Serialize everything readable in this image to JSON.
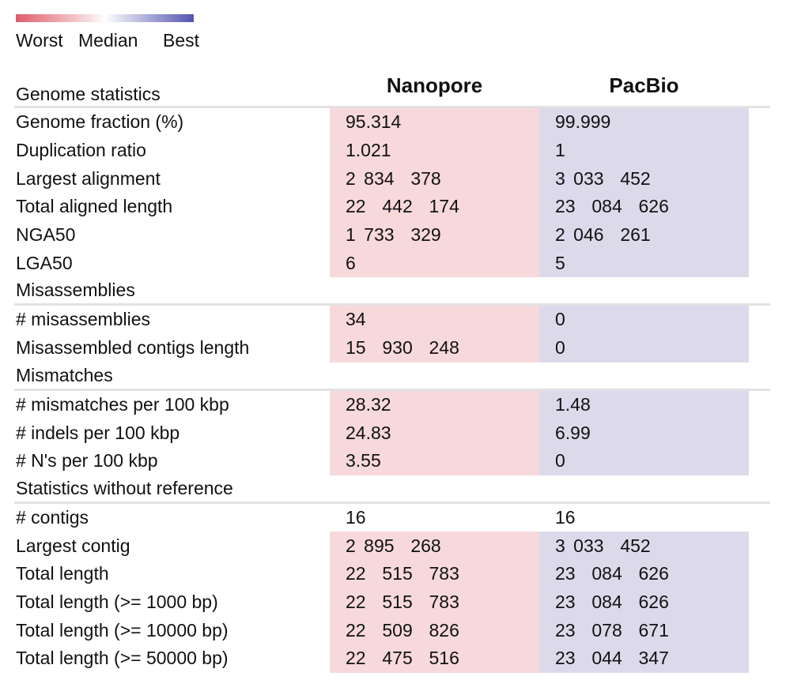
{
  "legend": {
    "worst": "Worst",
    "median": "Median",
    "best": "Best",
    "colors": {
      "worst": "#e05c6a",
      "median": "#ffffff",
      "best": "#5454b0"
    }
  },
  "columns": [
    "Nanopore",
    "PacBio"
  ],
  "colors": {
    "worst_cell": "#f7d9dc",
    "best_cell": "#dcdaea",
    "divider": "#e2e2e2"
  },
  "sections": [
    {
      "title": "Genome statistics",
      "rows": [
        {
          "label": "Genome fraction (%)",
          "values": [
            "95.314",
            "99.999"
          ],
          "heat": [
            "worst",
            "best"
          ]
        },
        {
          "label": "Duplication ratio",
          "values": [
            "1.021",
            "1"
          ],
          "heat": [
            "worst",
            "best"
          ]
        },
        {
          "label": "Largest alignment",
          "values": [
            "2 834  378",
            "3 033  452"
          ],
          "heat": [
            "worst",
            "best"
          ]
        },
        {
          "label": "Total aligned length",
          "values": [
            "22  442  174",
            "23  084  626"
          ],
          "heat": [
            "worst",
            "best"
          ]
        },
        {
          "label": "NGA50",
          "values": [
            "1 733  329",
            "2 046  261"
          ],
          "heat": [
            "worst",
            "best"
          ]
        },
        {
          "label": "LGA50",
          "values": [
            "6",
            "5"
          ],
          "heat": [
            "worst",
            "best"
          ]
        }
      ]
    },
    {
      "title": "Misassemblies",
      "rows": [
        {
          "label": "# misassemblies",
          "values": [
            "34",
            "0"
          ],
          "heat": [
            "worst",
            "best"
          ]
        },
        {
          "label": "Misassembled contigs length",
          "values": [
            "15  930  248",
            "0"
          ],
          "heat": [
            "worst",
            "best"
          ]
        }
      ]
    },
    {
      "title": "Mismatches",
      "rows": [
        {
          "label": "# mismatches per 100 kbp",
          "values": [
            "28.32",
            "1.48"
          ],
          "heat": [
            "worst",
            "best"
          ]
        },
        {
          "label": "# indels per 100 kbp",
          "values": [
            "24.83",
            "6.99"
          ],
          "heat": [
            "worst",
            "best"
          ]
        },
        {
          "label": "# N's per 100 kbp",
          "values": [
            "3.55",
            "0"
          ],
          "heat": [
            "worst",
            "best"
          ]
        }
      ]
    },
    {
      "title": "Statistics without reference",
      "rows": [
        {
          "label": "# contigs",
          "values": [
            "16",
            "16"
          ],
          "heat": [
            "plain",
            "plain"
          ]
        },
        {
          "label": "Largest contig",
          "values": [
            "2 895  268",
            "3 033  452"
          ],
          "heat": [
            "worst",
            "best"
          ]
        },
        {
          "label": "Total length",
          "values": [
            "22  515  783",
            "23  084  626"
          ],
          "heat": [
            "worst",
            "best"
          ]
        },
        {
          "label": "Total length (>= 1000 bp)",
          "values": [
            "22  515  783",
            "23  084  626"
          ],
          "heat": [
            "worst",
            "best"
          ]
        },
        {
          "label": "Total length (>= 10000 bp)",
          "values": [
            "22  509  826",
            "23  078  671"
          ],
          "heat": [
            "worst",
            "best"
          ]
        },
        {
          "label": "Total length (>= 50000 bp)",
          "values": [
            "22  475  516",
            "23  044  347"
          ],
          "heat": [
            "worst",
            "best"
          ]
        }
      ]
    }
  ]
}
